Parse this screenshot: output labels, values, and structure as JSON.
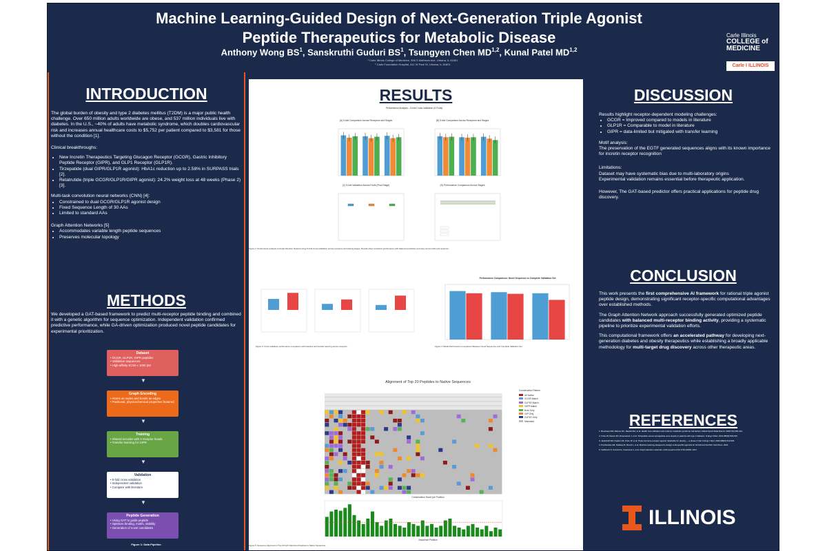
{
  "header": {
    "title_line1": "Machine Learning-Guided Design of Next-Generation Triple Agonist",
    "title_line2": "Peptide Therapeutics for Metabolic Disease",
    "authors": [
      {
        "name": "Anthony Wong BS",
        "sup": "1"
      },
      {
        "name": "Sanskruthi Guduri BS",
        "sup": "1"
      },
      {
        "name": "Tsungyen Chen MD",
        "sup": "1,2"
      },
      {
        "name": "Kunal Patel MD",
        "sup": "1,2"
      }
    ],
    "affiliation1": "¹ Carle Illinois College of Medicine, 506 S Mathews Ave, Urbana, IL 61801",
    "affiliation2": "² Carle Foundation Hospital, 611 W Park St, Urbana, IL 61801",
    "logo_college_line1": "Carle Illinois",
    "logo_college_line2": "COLLEGE of",
    "logo_college_line3": "MEDICINE",
    "logo_carle": "Carle  I ILLINOIS"
  },
  "introduction": {
    "heading": "INTRODUCTION",
    "p1": "The global burden of obesity and type 2 diabetes mellitus (T2DM) is a major public health challenge. Over 650 million adults worldwide are obese, and 537 million individuals live with diabetes. In the U.S., ~40% of adults have metabolic syndrome, which doubles cardiovascular risk and increases annual healthcare costs to $5,752 per patient compared to $3,581 for those without the condition [1].",
    "breakthroughs_label": "Clinical breakthroughs:",
    "breakthroughs": [
      "New Incretin Therapeutics Targeting Glucagon Receptor (GCGR), Gastric Inhibitory Peptide Receptor (GIPR), and GLP1 Receptor (GLP1R).",
      "Tirzepatide (dual GIPR/GLP1R agonist): HbA1c reduction up to 2.58% in SURPASS trials [2].",
      "Retatrutide (triple GCGR/GLP1R/GIPR agonist): 24.2% weight loss at 48 weeks (Phase 2) [3]."
    ],
    "cnn_label": "Multi-task convolution neural networks (CNN) [4]:",
    "cnn_items": [
      "Constrained to dual GCGR/GLP1R agonist design",
      "Fixed Sequence Length of 30 AAs",
      "Limited to standard AAs"
    ],
    "gat_label": "Graph Attention Networks [5]",
    "gat_items": [
      "Accommodates variable length peptide sequences",
      "Preserves molecular topology"
    ]
  },
  "methods": {
    "heading": "METHODS",
    "text": "We developed a GAT-based framework to predict multi-receptor peptide binding and combined it with a genetic algorithm for sequence optimization. Independent validation confirmed predictive performance, while GA-driven optimization produced novel peptide candidates for experimental prioritization.",
    "flow": [
      {
        "title": "Dataset",
        "lines": [
          "GCGR, GLP1R, GIPR peptides",
          "Validation sequences",
          "High-affinity EC50 ≤ 1000 pM"
        ],
        "color": "#e06060"
      },
      {
        "title": "Graph Encoding",
        "lines": [
          "Atoms as nodes and bonds as edges",
          "Positional, physicochemical properties featured"
        ],
        "color": "#ec6a1a"
      },
      {
        "title": "Training",
        "lines": [
          "Shared encoder with 3 receptor heads",
          "Transfer learning for GIPR"
        ],
        "color": "#68a544"
      },
      {
        "title": "Validation",
        "lines": [
          "5-fold cross validation",
          "Independent validation",
          "Compare with literature"
        ],
        "color": "#ffffff"
      },
      {
        "title": "Peptide Generation",
        "lines": [
          "Using GAT to guide peptide",
          "Optimize binding, motifs, stability",
          "Generation of novel candidates"
        ],
        "color": "#7b4fb0"
      }
    ],
    "figure_caption": "Figure 1: Data Pipeline."
  },
  "results": {
    "heading": "RESULTS",
    "fig2_title": "Performance Analysis – 5-fold Cross-Validation (5 Folds)",
    "fig2_panels": [
      "(A) 5-fold Comparison Across Receptors and Stages",
      "(B) 5-fold Comparison Across Receptors and Stages",
      "(C) 5-fold Validation Across Folds (Final Stage)",
      "(D) Performance Comparison Across Stages"
    ],
    "fig2_caption": "Figure 2: Performance analysis of Graph Attention Network using 5-Fold Cross-Validation across receptors and training stages. Results show consistent performance with balanced prediction accuracy across folds and receptors.",
    "fig3_caption": "Figure 3: Cross-validation performance comparison with baseline and transfer learning across receptors.",
    "fig4_title": "Performance Comparison: Novel Sequence vs Complete Validation Set",
    "fig4_caption": "Figure 4: Model Performance Comparison Between Novel Sequences and Complete Validation Set.",
    "fig5_title": "Alignment of Top 20 Peptides to Native Sequences",
    "fig5_legend_title": "Conservation Pattern",
    "fig5_legend": [
      "All Native",
      "GCGR Match",
      "GLP1R Match",
      "GIPR Match",
      "Both Only",
      "GIP Only",
      "GLP1R Only",
      "Mismatch"
    ],
    "conservation_title": "Conservation Score per Position",
    "conservation_xlabel": "Sequence Position",
    "fig5_caption": "Figure 5: Sequence Alignment of Top 20 GAT-Optimized Peptides to Native Sequences."
  },
  "discussion": {
    "heading": "DISCUSSION",
    "lead": "Results highlight receptor-dependent modeling challenges:",
    "items": [
      "GCGR = Improved compared to models in literature",
      "GLP1R = Comparable to model in literature",
      "GIPR = data-limited but mitigated with transfer learning"
    ],
    "motif_label": "Motif analysis:",
    "motif_text": "The preservation of the EGTF generated sequences aligns with its known importance for incretin receptor recognition",
    "limitations_label": "Limitations:",
    "limitations": [
      "Dataset may have systematic bias due to multi-laboratory origins",
      "Experimental validation remains essential before therapeutic application."
    ],
    "closing": "However, The GAT-based predictor offers practical applications for peptide drug discovery."
  },
  "conclusion": {
    "heading": "CONCLUSION",
    "p1_a": "This work presents the ",
    "p1_b": "first comprehensive AI framework",
    "p1_c": " for rational triple agonist peptide design, demonstrating significant receptor-specific computational advantages over established methods.",
    "p2_a": "The Graph Attention Network approach successfully generated optimized peptide candidates ",
    "p2_b": "with balanced multi-receptor binding activity",
    "p2_c": ", providing a systematic pipeline to prioritize experimental validation efforts.",
    "p3_a": "This computational framework offers ",
    "p3_b": "an accelerated pathway",
    "p3_c": " for developing next-generation diabetes and obesity therapeutics while establishing a broadly applicable methodology for ",
    "p3_d": "multi-target drug discovery",
    "p3_e": " across other therapeutic areas."
  },
  "references": {
    "heading": "REFERENCES",
    "items": [
      "1. Boudreau DM, Malone DC, Raebel MA, et al. Health care utilization and costs by metabolic syndrome risk factors. Metab Syndr Relat Disord. 2009;7(4):305-314.",
      "2. Frías JP, Davies MJ, Rosenstock J, et al. Tirzepatide versus semaglutide once weekly in patients with type 2 diabetes. N Engl J Med. 2021;385(6):503-515.",
      "3. Jastreboff AM, Kaplan LM, Frías JP, et al. Triple-hormone-receptor agonist retatrutide for obesity — a phase 2 trial. N Engl J Med. 2023;389(6):514-526.",
      "4. Puszkarska AM, Taddese B, Revell J, et al. Machine learning designed to design multi-specific agonists for GCGR and GLP1R. Nat Chem. 2024.",
      "5. Veličković P, Cucurull G, Casanova A, et al. Graph attention networks. arXiv preprint arXiv:1710.10903. 2017."
    ],
    "logo_text": "ILLINOIS"
  },
  "colors": {
    "background": "#1b2a4a",
    "accent": "#e8581c",
    "bar_blue": "#4e9dd3",
    "bar_orange": "#f08a36",
    "bar_green": "#4caf50",
    "bar_red": "#e84545"
  },
  "chart_data": [
    {
      "type": "bar",
      "panel": "A",
      "categories": [
        "GCGR",
        "GLP1R",
        "GIPR"
      ],
      "series": [
        {
          "values": [
            0.86,
            0.84,
            0.85
          ]
        },
        {
          "values": [
            0.81,
            0.8,
            0.8
          ]
        },
        {
          "values": [
            0.84,
            0.83,
            0.82
          ]
        }
      ],
      "ylim": [
        0,
        1
      ]
    },
    {
      "type": "bar",
      "panel": "B",
      "categories": [
        "GCGR",
        "GLP1R",
        "GIPR"
      ],
      "series": [
        {
          "values": [
            0.84,
            0.82,
            0.83
          ]
        },
        {
          "values": [
            0.82,
            0.81,
            0.79
          ]
        },
        {
          "values": [
            0.83,
            0.82,
            0.76
          ]
        }
      ],
      "ylim": [
        0,
        1
      ]
    },
    {
      "type": "bar",
      "panel": "fig3",
      "categories": [
        "GCGR",
        "GLP1R",
        "GIPR"
      ],
      "series": [
        {
          "values": [
            0.4,
            0.22,
            0.18
          ]
        },
        {
          "values": [
            0.62,
            0.38,
            0.52
          ]
        }
      ]
    },
    {
      "type": "bar",
      "panel": "fig4",
      "categories": [
        "GCGR",
        "GLP1R",
        "GIPR"
      ],
      "series": [
        {
          "values": [
            0.88,
            0.86,
            0.84
          ]
        },
        {
          "values": [
            0.84,
            0.83,
            0.72
          ]
        }
      ],
      "ylim": [
        0,
        1
      ]
    },
    {
      "type": "bar",
      "panel": "conservation",
      "xlabel": "Sequence Position",
      "values": [
        0.55,
        0.7,
        0.75,
        0.72,
        0.8,
        0.9,
        0.6,
        0.45,
        0.35,
        0.5,
        0.7,
        0.4,
        0.3,
        0.45,
        0.5,
        0.35,
        0.3,
        0.25,
        0.4,
        0.35,
        0.3,
        0.45,
        0.3,
        0.35,
        0.25,
        0.3,
        0.45,
        0.5,
        0.3,
        0.25,
        0.2,
        0.3,
        0.35,
        0.25,
        0.2,
        0.3,
        0.15,
        0.25,
        0.2
      ]
    }
  ]
}
